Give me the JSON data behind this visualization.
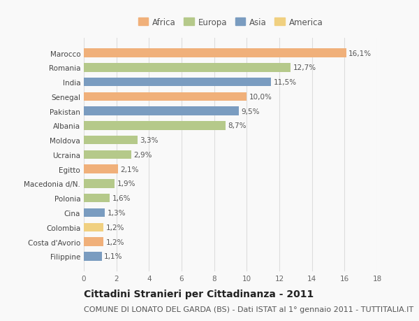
{
  "categories": [
    "Marocco",
    "Romania",
    "India",
    "Senegal",
    "Pakistan",
    "Albania",
    "Moldova",
    "Ucraina",
    "Egitto",
    "Macedonia d/N.",
    "Polonia",
    "Cina",
    "Colombia",
    "Costa d'Avorio",
    "Filippine"
  ],
  "values": [
    16.1,
    12.7,
    11.5,
    10.0,
    9.5,
    8.7,
    3.3,
    2.9,
    2.1,
    1.9,
    1.6,
    1.3,
    1.2,
    1.2,
    1.1
  ],
  "labels": [
    "16,1%",
    "12,7%",
    "11,5%",
    "10,0%",
    "9,5%",
    "8,7%",
    "3,3%",
    "2,9%",
    "2,1%",
    "1,9%",
    "1,6%",
    "1,3%",
    "1,2%",
    "1,2%",
    "1,1%"
  ],
  "continents": [
    "Africa",
    "Europa",
    "Asia",
    "Africa",
    "Asia",
    "Europa",
    "Europa",
    "Europa",
    "Africa",
    "Europa",
    "Europa",
    "Asia",
    "America",
    "Africa",
    "Asia"
  ],
  "continent_colors": {
    "Africa": "#F0B07A",
    "Europa": "#B5C98A",
    "Asia": "#7A9CC0",
    "America": "#F0D080"
  },
  "legend_order": [
    "Africa",
    "Europa",
    "Asia",
    "America"
  ],
  "title": "Cittadini Stranieri per Cittadinanza - 2011",
  "subtitle": "COMUNE DI LONATO DEL GARDA (BS) - Dati ISTAT al 1° gennaio 2011 - TUTTITALIA.IT",
  "xlim": [
    0,
    18
  ],
  "xticks": [
    0,
    2,
    4,
    6,
    8,
    10,
    12,
    14,
    16,
    18
  ],
  "background_color": "#f9f9f9",
  "grid_color": "#dddddd",
  "bar_height": 0.6,
  "title_fontsize": 10,
  "subtitle_fontsize": 8,
  "label_fontsize": 7.5,
  "tick_fontsize": 7.5,
  "legend_fontsize": 8.5
}
